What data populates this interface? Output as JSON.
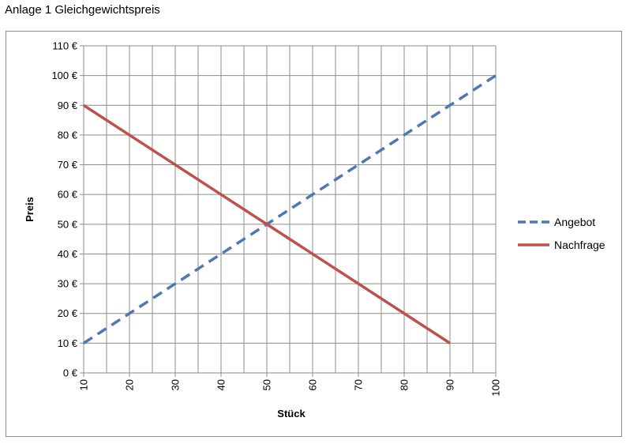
{
  "caption": "Anlage 1 Gleichgewichtspreis",
  "chart_data": {
    "type": "line",
    "xlabel": "Stück",
    "ylabel": "Preis",
    "xlim": [
      10,
      100
    ],
    "ylim": [
      0,
      110
    ],
    "x_ticks": [
      "10",
      "20",
      "30",
      "40",
      "50",
      "60",
      "70",
      "80",
      "90",
      "100"
    ],
    "y_ticks": [
      "0 €",
      "10 €",
      "20 €",
      "30 €",
      "40 €",
      "50 €",
      "60 €",
      "70 €",
      "80 €",
      "90 €",
      "100 €",
      "110 €"
    ],
    "grid": true,
    "legend_position": "right",
    "series": [
      {
        "name": "Angebot",
        "color": "#4f77b4",
        "style": "dashed",
        "x": [
          10,
          100
        ],
        "y": [
          10,
          100
        ]
      },
      {
        "name": "Nachfrage",
        "color": "#c0504d",
        "style": "solid",
        "x": [
          10,
          90
        ],
        "y": [
          90,
          10
        ]
      }
    ]
  }
}
